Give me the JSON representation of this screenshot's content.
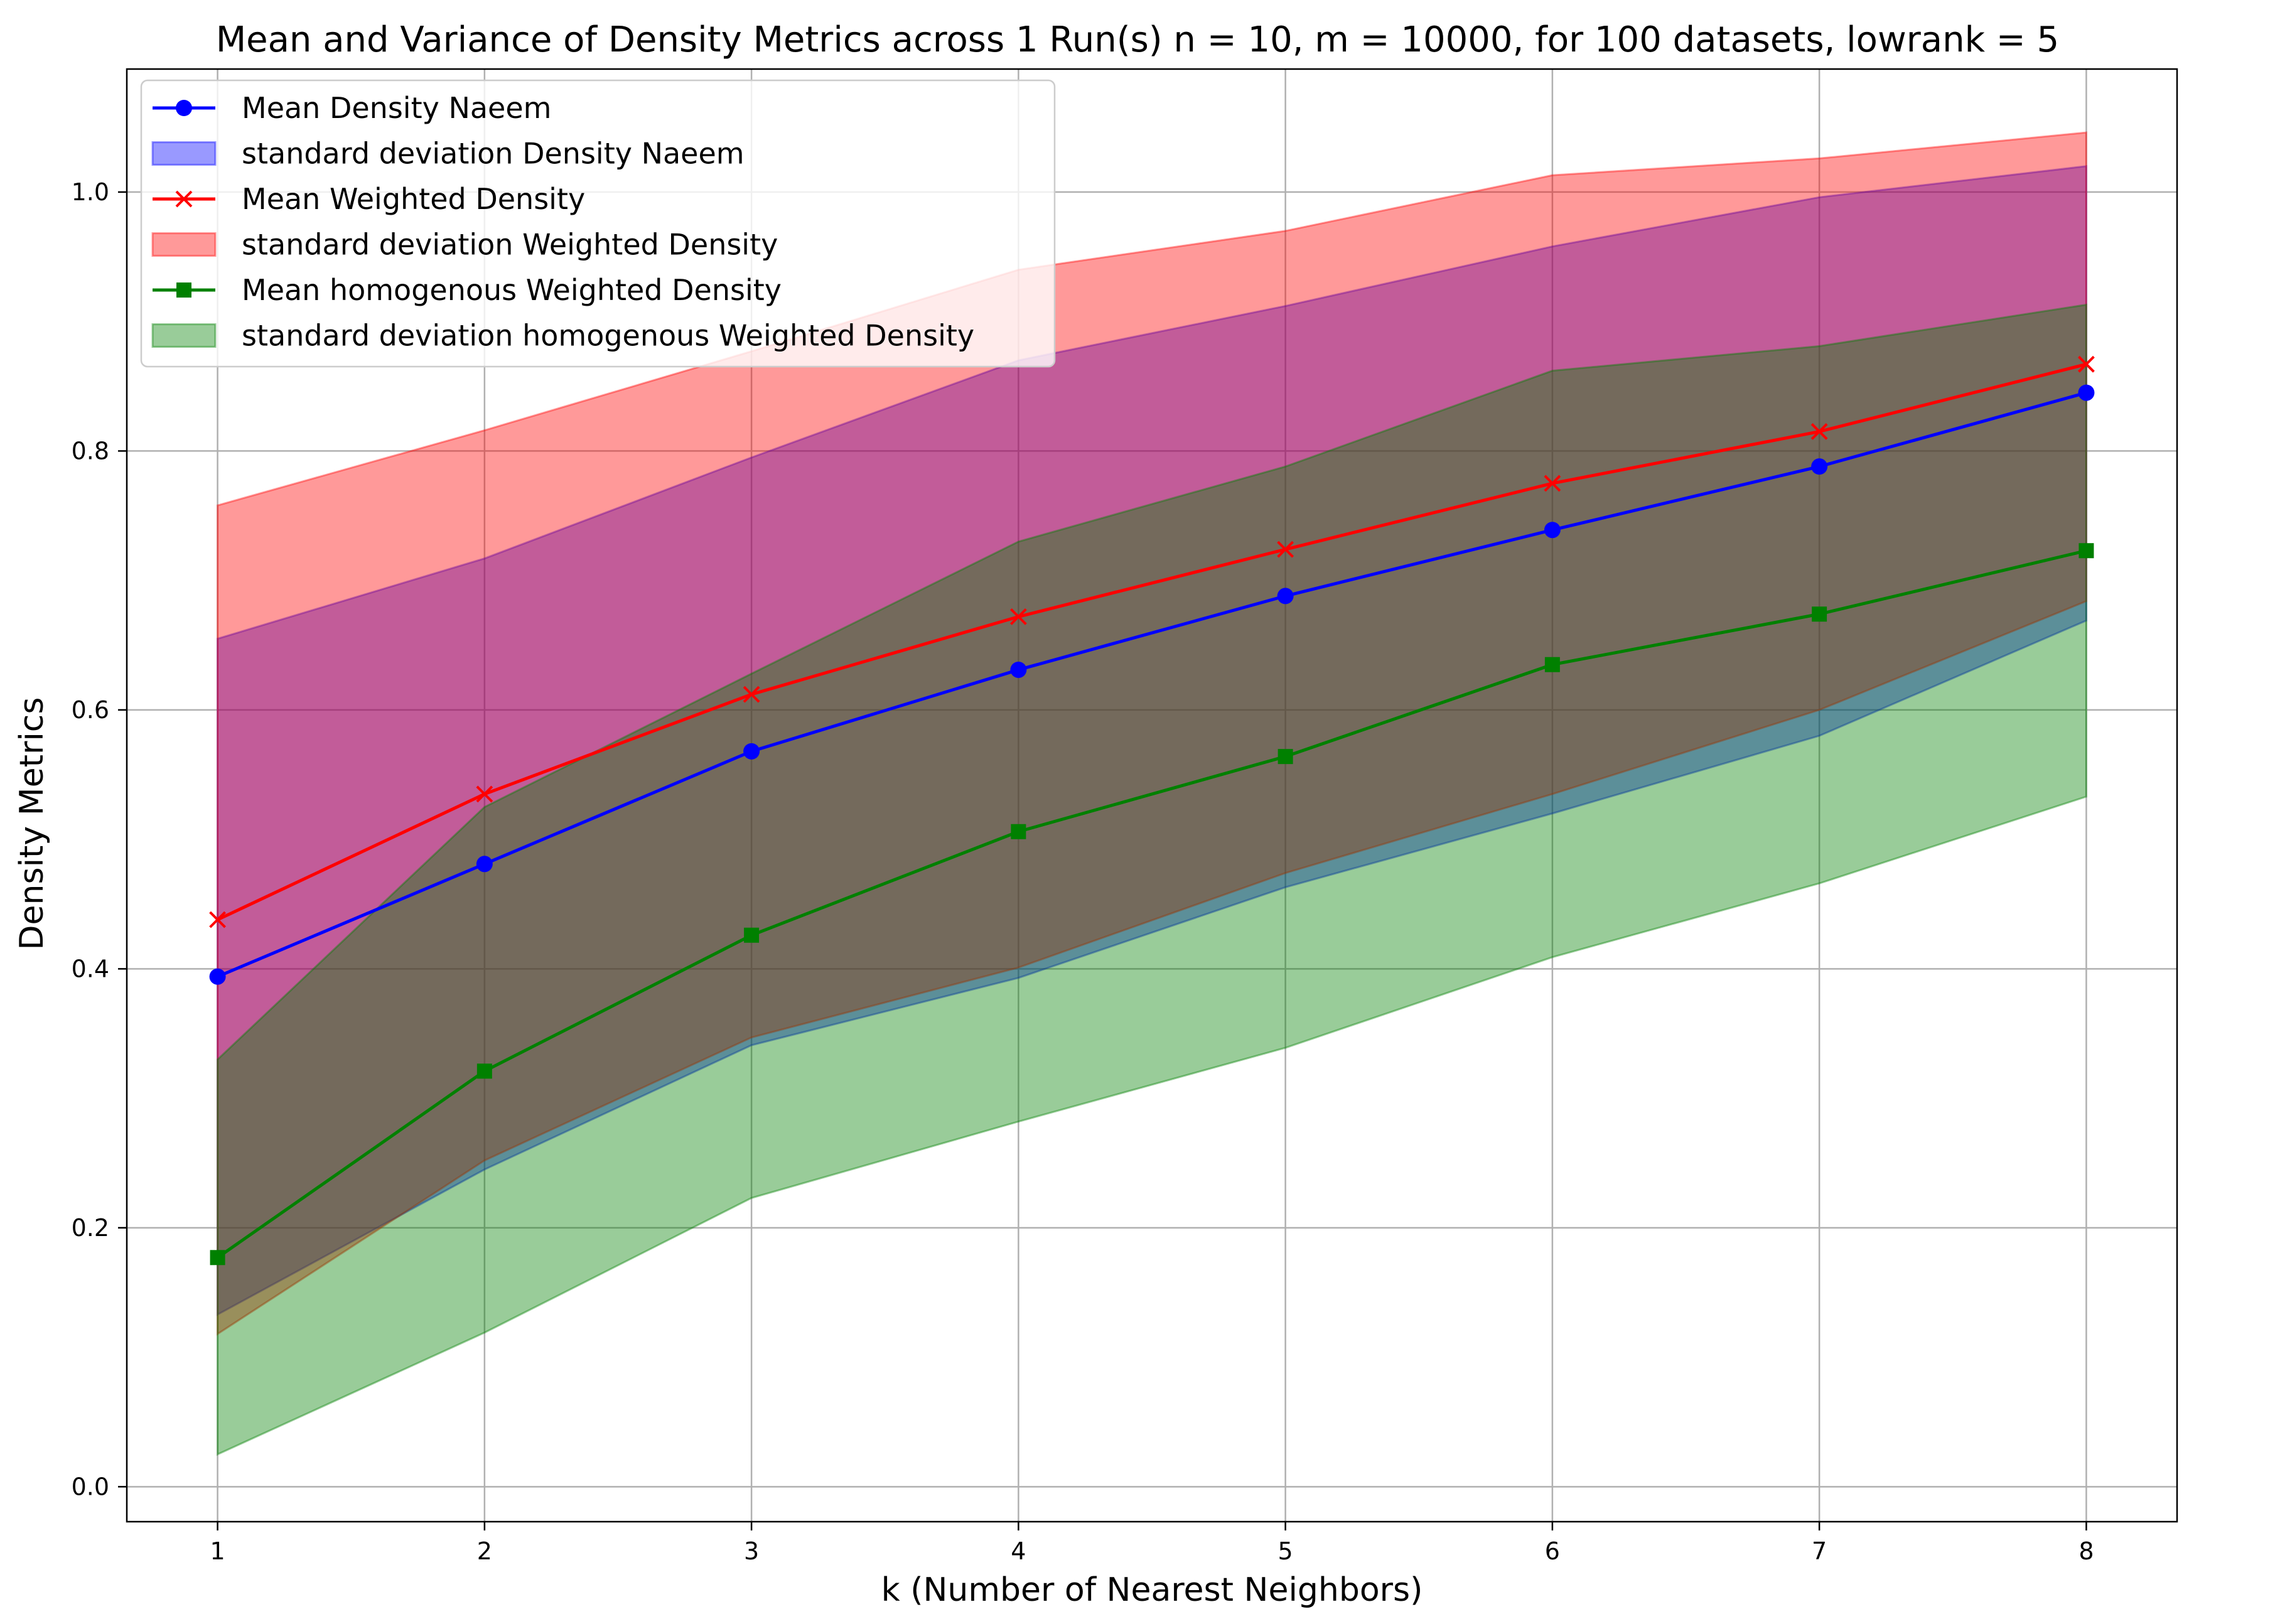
{
  "chart_data": {
    "type": "line",
    "title": "Mean and Variance of Density Metrics across 1 Run(s) n  = 10, m  = 10000, for 100 datasets, lowrank = 5",
    "xlabel": "k (Number of Nearest Neighbors)",
    "ylabel": "Density Metrics",
    "x": [
      1,
      2,
      3,
      4,
      5,
      6,
      7,
      8
    ],
    "xlim": [
      0.66,
      8.34
    ],
    "ylim": [
      -0.027,
      1.095
    ],
    "xticks": [
      "1",
      "2",
      "3",
      "4",
      "5",
      "6",
      "7",
      "8"
    ],
    "yticks": [
      "0.0",
      "0.2",
      "0.4",
      "0.6",
      "0.8",
      "1.0"
    ],
    "grid": true,
    "legend_position": "upper-left",
    "series": [
      {
        "name": "Mean Density Naeem",
        "band_name": "standard deviation Density Naeem",
        "color": "#0000ff",
        "marker": "circle",
        "values": [
          0.394,
          0.481,
          0.568,
          0.631,
          0.688,
          0.739,
          0.788,
          0.845
        ],
        "lower": [
          0.133,
          0.245,
          0.341,
          0.393,
          0.463,
          0.52,
          0.58,
          0.669
        ],
        "upper": [
          0.655,
          0.717,
          0.795,
          0.87,
          0.912,
          0.958,
          0.996,
          1.02
        ]
      },
      {
        "name": "Mean Weighted Density",
        "band_name": "standard deviation Weighted Density",
        "color": "#ff0000",
        "marker": "x",
        "values": [
          0.438,
          0.535,
          0.612,
          0.672,
          0.724,
          0.775,
          0.815,
          0.867
        ],
        "lower": [
          0.118,
          0.252,
          0.347,
          0.401,
          0.474,
          0.535,
          0.6,
          0.684
        ],
        "upper": [
          0.758,
          0.816,
          0.877,
          0.94,
          0.97,
          1.013,
          1.026,
          1.046
        ]
      },
      {
        "name": "Mean homogenous Weighted Density",
        "band_name": "standard deviation homogenous Weighted Density",
        "color": "#008000",
        "marker": "square",
        "values": [
          0.177,
          0.321,
          0.426,
          0.506,
          0.564,
          0.635,
          0.674,
          0.723
        ],
        "lower": [
          0.025,
          0.119,
          0.223,
          0.282,
          0.339,
          0.409,
          0.466,
          0.533
        ],
        "upper": [
          0.33,
          0.525,
          0.628,
          0.73,
          0.788,
          0.862,
          0.881,
          0.913
        ]
      }
    ]
  }
}
